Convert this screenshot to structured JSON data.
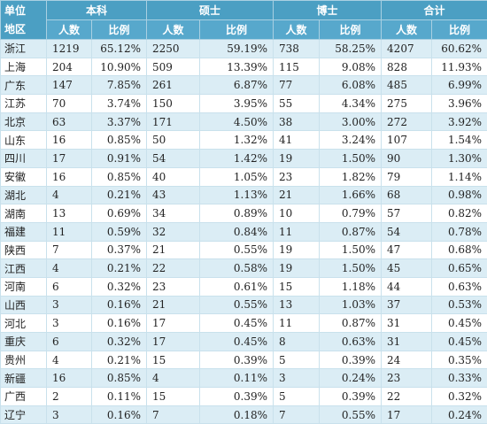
{
  "header": {
    "corner": [
      "单位",
      "地区"
    ],
    "groups": [
      "本科",
      "硕士",
      "博士",
      "合计"
    ],
    "subheaders": [
      "人数",
      "比例"
    ]
  },
  "table": {
    "rows": [
      [
        "浙江",
        "1219",
        "65.12%",
        "2250",
        "59.19%",
        "738",
        "58.25%",
        "4207",
        "60.62%"
      ],
      [
        "上海",
        "204",
        "10.90%",
        "509",
        "13.39%",
        "115",
        "9.08%",
        "828",
        "11.93%"
      ],
      [
        "广东",
        "147",
        "7.85%",
        "261",
        "6.87%",
        "77",
        "6.08%",
        "485",
        "6.99%"
      ],
      [
        "江苏",
        "70",
        "3.74%",
        "150",
        "3.95%",
        "55",
        "4.34%",
        "275",
        "3.96%"
      ],
      [
        "北京",
        "63",
        "3.37%",
        "171",
        "4.50%",
        "38",
        "3.00%",
        "272",
        "3.92%"
      ],
      [
        "山东",
        "16",
        "0.85%",
        "50",
        "1.32%",
        "41",
        "3.24%",
        "107",
        "1.54%"
      ],
      [
        "四川",
        "17",
        "0.91%",
        "54",
        "1.42%",
        "19",
        "1.50%",
        "90",
        "1.30%"
      ],
      [
        "安徽",
        "16",
        "0.85%",
        "40",
        "1.05%",
        "23",
        "1.82%",
        "79",
        "1.14%"
      ],
      [
        "湖北",
        "4",
        "0.21%",
        "43",
        "1.13%",
        "21",
        "1.66%",
        "68",
        "0.98%"
      ],
      [
        "湖南",
        "13",
        "0.69%",
        "34",
        "0.89%",
        "10",
        "0.79%",
        "57",
        "0.82%"
      ],
      [
        "福建",
        "11",
        "0.59%",
        "32",
        "0.84%",
        "11",
        "0.87%",
        "54",
        "0.78%"
      ],
      [
        "陕西",
        "7",
        "0.37%",
        "21",
        "0.55%",
        "19",
        "1.50%",
        "47",
        "0.68%"
      ],
      [
        "江西",
        "4",
        "0.21%",
        "22",
        "0.58%",
        "19",
        "1.50%",
        "45",
        "0.65%"
      ],
      [
        "河南",
        "6",
        "0.32%",
        "23",
        "0.61%",
        "15",
        "1.18%",
        "44",
        "0.63%"
      ],
      [
        "山西",
        "3",
        "0.16%",
        "21",
        "0.55%",
        "13",
        "1.03%",
        "37",
        "0.53%"
      ],
      [
        "河北",
        "3",
        "0.16%",
        "17",
        "0.45%",
        "11",
        "0.87%",
        "31",
        "0.45%"
      ],
      [
        "重庆",
        "6",
        "0.32%",
        "17",
        "0.45%",
        "8",
        "0.63%",
        "31",
        "0.45%"
      ],
      [
        "贵州",
        "4",
        "0.21%",
        "15",
        "0.39%",
        "5",
        "0.39%",
        "24",
        "0.35%"
      ],
      [
        "新疆",
        "16",
        "0.85%",
        "4",
        "0.11%",
        "3",
        "0.24%",
        "23",
        "0.33%"
      ],
      [
        "广西",
        "2",
        "0.11%",
        "15",
        "0.39%",
        "5",
        "0.39%",
        "22",
        "0.32%"
      ],
      [
        "辽宁",
        "3",
        "0.16%",
        "7",
        "0.18%",
        "7",
        "0.55%",
        "17",
        "0.24%"
      ]
    ]
  }
}
